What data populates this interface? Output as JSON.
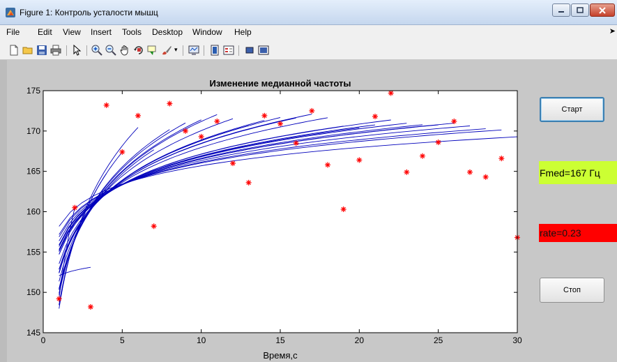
{
  "window": {
    "title": "Figure 1: Контроль усталости мышц"
  },
  "menu": {
    "items": [
      "File",
      "Edit",
      "View",
      "Insert",
      "Tools",
      "Desktop",
      "Window",
      "Help"
    ],
    "overflow_arrow": "➤"
  },
  "toolbar": {
    "icons": [
      "new-figure-icon",
      "open-file-icon",
      "save-icon",
      "print-icon",
      "pointer-icon",
      "zoom-in-icon",
      "zoom-out-icon",
      "pan-icon",
      "rotate-3d-icon",
      "data-cursor-icon",
      "brush-icon",
      "dropdown-arrow-icon",
      "link-plot-icon",
      "insert-colorbar-icon",
      "insert-legend-icon",
      "hide-plot-tools-icon",
      "show-plot-tools-icon"
    ]
  },
  "controls": {
    "start_label": "Старт",
    "stop_label": "Стоп",
    "fmed_text": "Fmed=167 Гц",
    "rate_text": "rate=0.23",
    "fmed_color": "#ccff33",
    "rate_color": "#ff0000"
  },
  "chart_data": {
    "type": "scatter",
    "title": "Изменение медианной частоты",
    "xlabel": "Время,с",
    "ylabel": "",
    "xlim": [
      0,
      30
    ],
    "ylim": [
      145,
      175
    ],
    "xticks": [
      0,
      5,
      10,
      15,
      20,
      25,
      30
    ],
    "yticks": [
      145,
      150,
      155,
      160,
      165,
      170,
      175
    ],
    "grid": false,
    "marker_color": "#ff0000",
    "line_color": "#0000bb",
    "points": {
      "x": [
        1,
        2,
        3,
        4,
        5,
        6,
        7,
        8,
        9,
        10,
        11,
        12,
        13,
        14,
        15,
        16,
        17,
        18,
        19,
        20,
        21,
        22,
        23,
        24,
        25,
        26,
        27,
        28,
        29,
        30
      ],
      "y": [
        149.2,
        160.5,
        148.2,
        173.2,
        167.4,
        171.9,
        158.2,
        173.4,
        170.0,
        169.3,
        171.2,
        166.0,
        163.6,
        171.9,
        170.9,
        168.5,
        172.5,
        165.8,
        160.3,
        166.4,
        171.8,
        174.7,
        164.9,
        166.9,
        168.6,
        171.2,
        164.9,
        164.3,
        166.6,
        156.8
      ]
    },
    "fit_curves": {
      "x_start": 1,
      "n_points": [
        2,
        3,
        4,
        5,
        6,
        7,
        8,
        9,
        10,
        11,
        12,
        13,
        14,
        15,
        16,
        17,
        18,
        19,
        20,
        21,
        22,
        23,
        24,
        25,
        26,
        27,
        28,
        29,
        30
      ]
    }
  }
}
